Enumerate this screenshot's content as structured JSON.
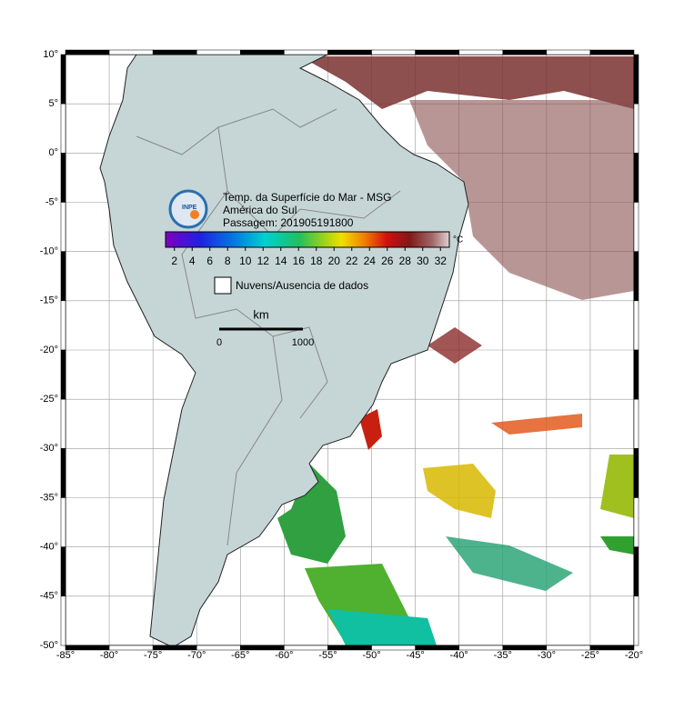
{
  "map": {
    "title_lines": [
      "Temp. da Superfície do Mar - MSG",
      "América do Sul",
      "Passagem: 201905191800"
    ],
    "logo": "INPE",
    "xlim": [
      -85,
      -20
    ],
    "ylim": [
      -50,
      10
    ],
    "xticks": [
      {
        "value": -85,
        "label": "-85°"
      },
      {
        "value": -80,
        "label": "-80°"
      },
      {
        "value": -75,
        "label": "-75°"
      },
      {
        "value": -70,
        "label": "-70°"
      },
      {
        "value": -65,
        "label": "-65°"
      },
      {
        "value": -60,
        "label": "-60°"
      },
      {
        "value": -55,
        "label": "-55°"
      },
      {
        "value": -50,
        "label": "-50°"
      },
      {
        "value": -45,
        "label": "-45°"
      },
      {
        "value": -40,
        "label": "-40°"
      },
      {
        "value": -35,
        "label": "-35°"
      },
      {
        "value": -30,
        "label": "-30°"
      },
      {
        "value": -25,
        "label": "-25°"
      },
      {
        "value": -20,
        "label": "-20°"
      }
    ],
    "yticks": [
      {
        "value": 10,
        "label": "10°"
      },
      {
        "value": 5,
        "label": "5°"
      },
      {
        "value": 0,
        "label": "0°"
      },
      {
        "value": -5,
        "label": "-5°"
      },
      {
        "value": -10,
        "label": "-10°"
      },
      {
        "value": -15,
        "label": "-15°"
      },
      {
        "value": -20,
        "label": "-20°"
      },
      {
        "value": -25,
        "label": "-25°"
      },
      {
        "value": -30,
        "label": "-30°"
      },
      {
        "value": -35,
        "label": "-35°"
      },
      {
        "value": -40,
        "label": "-40°"
      },
      {
        "value": -45,
        "label": "-45°"
      },
      {
        "value": -50,
        "label": "-50°"
      }
    ],
    "colorbar": {
      "unit": "°C",
      "range": [
        1,
        33
      ],
      "ticks": [
        2,
        4,
        6,
        8,
        10,
        12,
        14,
        16,
        18,
        20,
        22,
        24,
        26,
        28,
        30,
        32
      ]
    },
    "legend": "Nuvens/Ausencia de dados",
    "scale_bar": {
      "unit": "km",
      "labels": [
        "0",
        "1000"
      ]
    }
  }
}
